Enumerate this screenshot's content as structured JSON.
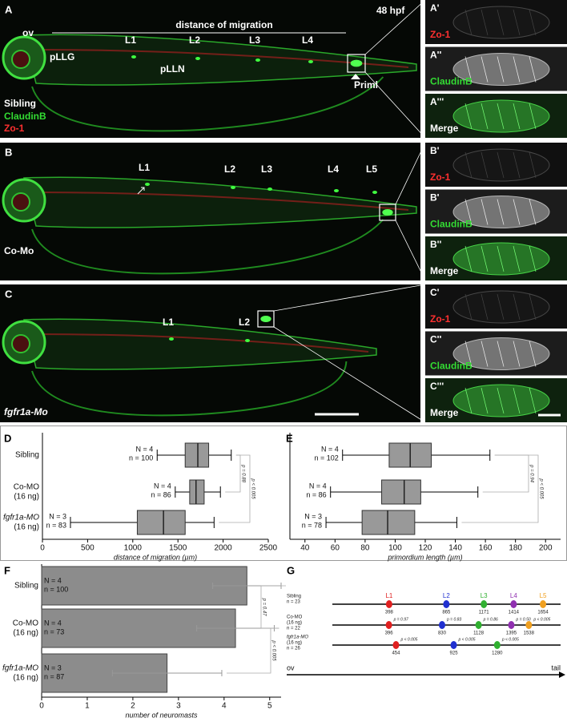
{
  "panels": [
    {
      "letter": "A",
      "stage": "48 hpf",
      "axis_label": "distance of migration",
      "structures": [
        "ov",
        "pLLG",
        "pLLN",
        "Priml"
      ],
      "neuromasts": [
        "L1",
        "L2",
        "L3",
        "L4"
      ],
      "condition": "Sibling",
      "stains": [
        "ClaudinB",
        "Zo-1"
      ],
      "insets": [
        {
          "letter": "A'",
          "label": "Zo-1"
        },
        {
          "letter": "A''",
          "label": "ClaudinB"
        },
        {
          "letter": "A'''",
          "label": "Merge"
        }
      ]
    },
    {
      "letter": "B",
      "neuromasts": [
        "L1",
        "L2",
        "L3",
        "L4",
        "L5"
      ],
      "condition": "Co-Mo",
      "insets": [
        {
          "letter": "B'",
          "label": "Zo-1"
        },
        {
          "letter": "B'",
          "label": "ClaudinB"
        },
        {
          "letter": "B''",
          "label": "Merge"
        }
      ]
    },
    {
      "letter": "C",
      "neuromasts": [
        "L1",
        "L2"
      ],
      "condition": "fgfr1a-Mo",
      "insets": [
        {
          "letter": "C'",
          "label": "Zo-1"
        },
        {
          "letter": "C''",
          "label": "ClaudinB"
        },
        {
          "letter": "C'''",
          "label": "Merge"
        }
      ]
    }
  ],
  "chart_data": [
    {
      "type": "box",
      "panel": "D",
      "x_label": "distance of migration (µm)",
      "categories": [
        [
          "Sibling"
        ],
        [
          "Co-MO",
          "(16 ng)"
        ],
        [
          "fgfr1a-MO",
          "(16 ng)"
        ]
      ],
      "stats": [
        [
          "N = 4",
          "n = 100"
        ],
        [
          "N = 4",
          "n = 86"
        ],
        [
          "N = 3",
          "n = 83"
        ]
      ],
      "boxes": [
        {
          "min": 1270,
          "q1": 1580,
          "median": 1720,
          "q3": 1840,
          "max": 2090
        },
        {
          "min": 1470,
          "q1": 1630,
          "median": 1700,
          "q3": 1790,
          "max": 1970
        },
        {
          "min": 310,
          "q1": 1050,
          "median": 1340,
          "q3": 1580,
          "max": 1900
        }
      ],
      "annotations": [
        "p = 0.88",
        "p < 0.005"
      ],
      "xlim": [
        0,
        2500
      ],
      "xticks": [
        0,
        500,
        1000,
        1500,
        2000,
        2500
      ],
      "color": "#999999"
    },
    {
      "type": "box",
      "panel": "E",
      "x_label": "primordium length (µm)",
      "stats": [
        [
          "N = 4",
          "n = 102"
        ],
        [
          "N = 4",
          "n = 86"
        ],
        [
          "N = 3",
          "n = 78"
        ]
      ],
      "boxes": [
        {
          "min": 65,
          "q1": 96,
          "median": 110,
          "q3": 124,
          "max": 163
        },
        {
          "min": 57,
          "q1": 91,
          "median": 106,
          "q3": 117,
          "max": 155
        },
        {
          "min": 54,
          "q1": 78,
          "median": 95,
          "q3": 113,
          "max": 141
        }
      ],
      "annotations": [
        "p = 0.94",
        "p < 0.005"
      ],
      "xlim": [
        30,
        210
      ],
      "xticks": [
        40,
        60,
        80,
        100,
        120,
        140,
        160,
        180,
        200
      ],
      "color": "#999999"
    },
    {
      "type": "bar",
      "panel": "F",
      "x_label": "number of neuromasts",
      "categories": [
        [
          "Sibling"
        ],
        [
          "Co-MO",
          "(16 ng)"
        ],
        [
          "fgfr1a-MO",
          "(16 ng)"
        ]
      ],
      "stats": [
        [
          "N = 4",
          "n = 100"
        ],
        [
          "N = 4",
          "n = 73"
        ],
        [
          "N = 3",
          "n = 87"
        ]
      ],
      "values": [
        4.5,
        4.25,
        2.75
      ],
      "errors": [
        0.75,
        0.85,
        1.2
      ],
      "annotations": [
        "p = 0.47",
        "p < 0.005"
      ],
      "xlim": [
        0,
        5.25
      ],
      "xticks": [
        0,
        1,
        2,
        3,
        4,
        5
      ],
      "color": "#8c8c8c"
    }
  ],
  "diagram": {
    "letter": "G",
    "neuromasts": [
      "L1",
      "L2",
      "L3",
      "L4",
      "L5"
    ],
    "colors": [
      "#e02020",
      "#2030d0",
      "#30b030",
      "#9030b0",
      "#f0a020"
    ],
    "rows": [
      {
        "label": [
          "Sibling"
        ],
        "n": "n = 23",
        "values": [
          398,
          865,
          1171,
          1414,
          1654
        ]
      },
      {
        "label": [
          "Co-MO",
          "(16 ng)"
        ],
        "n": "n = 22",
        "values": [
          396,
          830,
          1128,
          1395,
          1538
        ],
        "p": [
          "p = 0.97",
          "p = 0.83",
          "p = 0.86",
          "p = 0.50",
          "p < 0.005"
        ]
      },
      {
        "label": [
          "fgfr1a-MO",
          "(16 ng)"
        ],
        "n": "n = 26",
        "values": [
          454,
          925,
          1280
        ],
        "p": [
          "p < 0.005",
          "p < 0.005",
          "p < 0.005"
        ]
      }
    ],
    "axis": [
      "ov",
      "tail"
    ]
  }
}
